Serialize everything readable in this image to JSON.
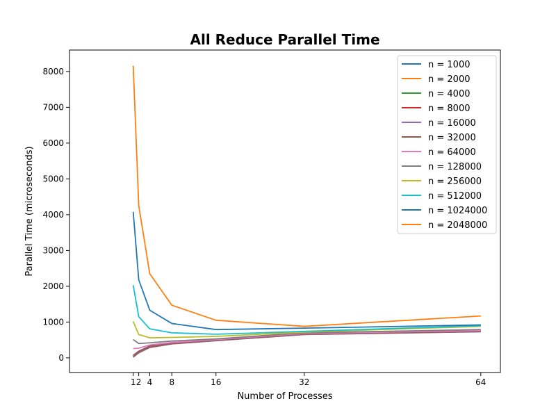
{
  "chart_data": {
    "type": "line",
    "title": "All Reduce Parallel Time",
    "xlabel": "Number of Processes",
    "ylabel": "Parallel Time (microseconds)",
    "xlim": [
      -10.55,
      67.55
    ],
    "ylim": [
      -410,
      8600
    ],
    "x": [
      1,
      2,
      4,
      8,
      16,
      32,
      64
    ],
    "xticks": [
      1,
      2,
      4,
      8,
      16,
      32,
      64
    ],
    "yticks": [
      0,
      1000,
      2000,
      3000,
      4000,
      5000,
      6000,
      7000,
      8000
    ],
    "grid": false,
    "legend_position": "top-right",
    "series": [
      {
        "name": "n = 1000",
        "color": "#1f77b4",
        "values": [
          20,
          140,
          290,
          390,
          480,
          650,
          730
        ]
      },
      {
        "name": "n = 2000",
        "color": "#ff7f0e",
        "values": [
          25,
          145,
          295,
          395,
          485,
          655,
          735
        ]
      },
      {
        "name": "n = 4000",
        "color": "#2ca02c",
        "values": [
          30,
          150,
          300,
          400,
          490,
          660,
          740
        ]
      },
      {
        "name": "n = 8000",
        "color": "#d62728",
        "values": [
          35,
          155,
          305,
          400,
          490,
          660,
          735
        ]
      },
      {
        "name": "n = 16000",
        "color": "#9467bd",
        "values": [
          45,
          165,
          315,
          410,
          495,
          665,
          740
        ]
      },
      {
        "name": "n = 32000",
        "color": "#8c564b",
        "values": [
          70,
          185,
          330,
          420,
          500,
          670,
          745
        ]
      },
      {
        "name": "n = 64000",
        "color": "#e377c2",
        "values": [
          260,
          270,
          360,
          430,
          510,
          680,
          760
        ]
      },
      {
        "name": "n = 128000",
        "color": "#7f7f7f",
        "values": [
          510,
          400,
          420,
          470,
          530,
          700,
          790
        ]
      },
      {
        "name": "n = 256000",
        "color": "#bcbd22",
        "values": [
          1020,
          650,
          560,
          570,
          600,
          720,
          880
        ]
      },
      {
        "name": "n = 512000",
        "color": "#17becf",
        "values": [
          2030,
          1150,
          810,
          700,
          660,
          740,
          900
        ]
      },
      {
        "name": "n = 1024000",
        "color": "#1f77b4",
        "values": [
          4080,
          2180,
          1330,
          960,
          790,
          830,
          920
        ]
      },
      {
        "name": "n = 2048000",
        "color": "#ff7f0e",
        "values": [
          8160,
          4250,
          2350,
          1470,
          1050,
          880,
          1170
        ]
      }
    ]
  }
}
